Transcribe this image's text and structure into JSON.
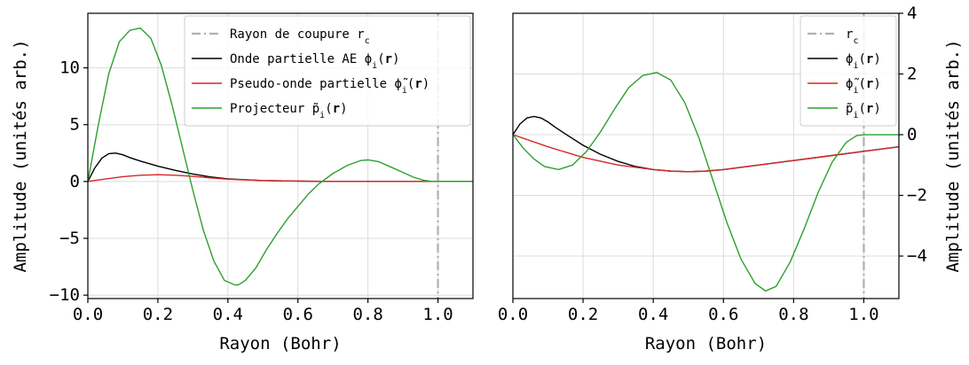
{
  "chart_data": [
    {
      "type": "line",
      "panel": "left",
      "xlabel": "Rayon (Bohr)",
      "ylabel": "Amplitude (unités arb.)",
      "xlim": [
        0.0,
        1.1
      ],
      "ylim": [
        -10.3,
        14.8
      ],
      "xticks": [
        0.0,
        0.2,
        0.4,
        0.6,
        0.8,
        1.0
      ],
      "xtick_labels": [
        "0.0",
        "0.2",
        "0.4",
        "0.6",
        "0.8",
        "1.0"
      ],
      "yticks": [
        -10,
        -5,
        0,
        5,
        10
      ],
      "ytick_labels": [
        "−10",
        "−5",
        "0",
        "5",
        "10"
      ],
      "yaxis_side": "left",
      "grid": true,
      "legend_position": "top-right",
      "cutoff": {
        "name": "Rayon de coupure r",
        "subscript": "c",
        "x": 1.0,
        "color": "#b0b0b0",
        "style": "dash-dot"
      },
      "series": [
        {
          "name": "Onde partielle AE ϕ",
          "subscript": "i",
          "arg": "r",
          "color": "#000000",
          "x": [
            0.0,
            0.02,
            0.04,
            0.06,
            0.08,
            0.1,
            0.12,
            0.15,
            0.2,
            0.25,
            0.3,
            0.35,
            0.4,
            0.5,
            0.6,
            0.7,
            0.8,
            0.9,
            1.0,
            1.1
          ],
          "y": [
            0.0,
            1.2,
            2.05,
            2.45,
            2.5,
            2.35,
            2.1,
            1.8,
            1.35,
            0.98,
            0.66,
            0.4,
            0.23,
            0.08,
            0.03,
            0.0,
            0.0,
            0.0,
            0.0,
            0.0
          ]
        },
        {
          "name": "Pseudo-onde partielle ",
          "accent": "ϕ̃",
          "subscript": "i",
          "arg": "r",
          "color": "#d62728",
          "x": [
            0.0,
            0.05,
            0.1,
            0.15,
            0.2,
            0.25,
            0.3,
            0.35,
            0.4,
            0.5,
            0.6,
            0.7,
            0.8,
            0.9,
            1.0,
            1.1
          ],
          "y": [
            0.0,
            0.22,
            0.42,
            0.55,
            0.6,
            0.55,
            0.45,
            0.32,
            0.2,
            0.08,
            0.03,
            0.0,
            0.0,
            0.0,
            0.0,
            0.0
          ]
        },
        {
          "name": "Projecteur ",
          "accent": "p̃",
          "subscript": "i",
          "arg": "r",
          "color": "#2ca02c",
          "x": [
            0.0,
            0.03,
            0.06,
            0.09,
            0.12,
            0.15,
            0.18,
            0.21,
            0.24,
            0.27,
            0.3,
            0.33,
            0.36,
            0.39,
            0.42,
            0.43,
            0.45,
            0.48,
            0.51,
            0.54,
            0.57,
            0.6,
            0.63,
            0.66,
            0.7,
            0.74,
            0.78,
            0.8,
            0.83,
            0.86,
            0.9,
            0.93,
            0.96,
            0.98,
            1.0,
            1.1
          ],
          "y": [
            0.0,
            5.0,
            9.5,
            12.3,
            13.3,
            13.5,
            12.6,
            10.2,
            6.8,
            3.0,
            -0.8,
            -4.3,
            -7.0,
            -8.7,
            -9.1,
            -9.1,
            -8.7,
            -7.6,
            -6.0,
            -4.6,
            -3.3,
            -2.2,
            -1.1,
            -0.2,
            0.7,
            1.4,
            1.85,
            1.9,
            1.75,
            1.35,
            0.8,
            0.38,
            0.1,
            0.02,
            0.0,
            0.0
          ]
        }
      ]
    },
    {
      "type": "line",
      "panel": "right",
      "xlabel": "Rayon (Bohr)",
      "ylabel": "Amplitude (unités arb.)",
      "xlim": [
        0.0,
        1.1
      ],
      "ylim": [
        -5.4,
        4.0
      ],
      "xticks": [
        0.0,
        0.2,
        0.4,
        0.6,
        0.8,
        1.0
      ],
      "xtick_labels": [
        "0.0",
        "0.2",
        "0.4",
        "0.6",
        "0.8",
        "1.0"
      ],
      "yticks": [
        -4,
        -2,
        0,
        2,
        4
      ],
      "ytick_labels": [
        "−4",
        "−2",
        "0",
        "2",
        "4"
      ],
      "yaxis_side": "right",
      "grid": true,
      "legend_position": "top-right",
      "cutoff": {
        "name": "r",
        "subscript": "c",
        "x": 1.0,
        "color": "#b0b0b0",
        "style": "dash-dot"
      },
      "series": [
        {
          "name": "ϕ",
          "subscript": "i",
          "arg": "r",
          "color": "#000000",
          "x": [
            0.0,
            0.02,
            0.04,
            0.06,
            0.08,
            0.1,
            0.12,
            0.15,
            0.2,
            0.25,
            0.3,
            0.35,
            0.4,
            0.45,
            0.5,
            0.55,
            0.6,
            0.7,
            0.8,
            0.9,
            1.0,
            1.1
          ],
          "y": [
            0.0,
            0.35,
            0.55,
            0.6,
            0.55,
            0.42,
            0.25,
            0.02,
            -0.35,
            -0.65,
            -0.88,
            -1.05,
            -1.15,
            -1.2,
            -1.22,
            -1.2,
            -1.15,
            -1.0,
            -0.85,
            -0.7,
            -0.55,
            -0.4
          ]
        },
        {
          "name": "",
          "accent": "ϕ̃",
          "subscript": "i",
          "arg": "r",
          "color": "#d62728",
          "x": [
            0.0,
            0.1,
            0.2,
            0.3,
            0.4,
            0.45,
            0.5,
            0.55,
            0.6,
            0.7,
            0.8,
            0.9,
            1.0,
            1.1
          ],
          "y": [
            0.0,
            -0.4,
            -0.75,
            -1.0,
            -1.15,
            -1.2,
            -1.22,
            -1.2,
            -1.15,
            -1.0,
            -0.85,
            -0.7,
            -0.55,
            -0.4
          ]
        },
        {
          "name": "",
          "accent": "p̃",
          "subscript": "i",
          "arg": "r",
          "color": "#2ca02c",
          "x": [
            0.0,
            0.03,
            0.06,
            0.09,
            0.13,
            0.17,
            0.21,
            0.25,
            0.29,
            0.33,
            0.37,
            0.41,
            0.45,
            0.49,
            0.53,
            0.57,
            0.61,
            0.65,
            0.69,
            0.72,
            0.75,
            0.79,
            0.83,
            0.87,
            0.91,
            0.95,
            0.98,
            1.0,
            1.1
          ],
          "y": [
            0.0,
            -0.45,
            -0.8,
            -1.05,
            -1.15,
            -1.0,
            -0.55,
            0.1,
            0.85,
            1.55,
            1.95,
            2.05,
            1.8,
            1.05,
            -0.1,
            -1.5,
            -2.9,
            -4.1,
            -4.9,
            -5.15,
            -5.0,
            -4.2,
            -3.1,
            -1.9,
            -0.9,
            -0.25,
            -0.03,
            0.0,
            0.0
          ]
        }
      ]
    }
  ]
}
